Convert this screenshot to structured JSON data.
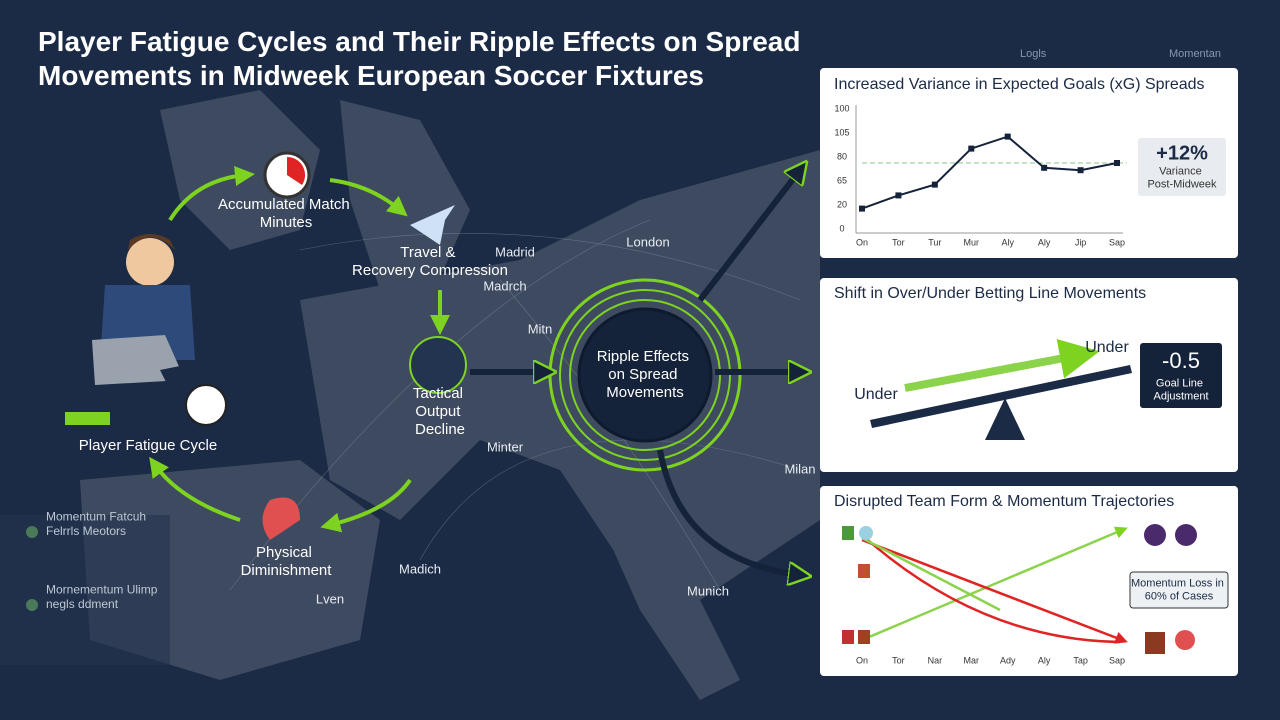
{
  "title": "Player Fatigue Cycles and Their Ripple Effects on Spread Movements in Midweek European Soccer Fixtures",
  "cycle": {
    "nodes": [
      "Accumulated Match Minutes",
      "Travel & Recovery Compression",
      "Tactical Output Decline",
      "Physical Diminishment"
    ],
    "player_label": "Player Fatigue Cycle",
    "center": "Ripple Effects on Spread Movements"
  },
  "map_labels": [
    "London",
    "Madrid",
    "Madrch",
    "Mitn",
    "Minter",
    "Milan",
    "Madich",
    "Lven",
    "Munich"
  ],
  "side_notes": [
    "Momentum Fatcuh Felrrls Meotors",
    "Mornementum Ulimp negls ddment"
  ],
  "corner_labels": [
    "Logls",
    "Momentan"
  ],
  "panels": [
    {
      "title": "Increased Variance in Expected Goals (xG) Spreads",
      "y_labels": [
        "100",
        "105",
        "80",
        "65",
        "20",
        "0"
      ],
      "x_labels": [
        "On",
        "Tor",
        "Tur",
        "Mur",
        "Aly",
        "Aly",
        "Jip",
        "Sap"
      ],
      "values": [
        17,
        28,
        37,
        67,
        77,
        51,
        49,
        55
      ],
      "reference": 55,
      "ylim": [
        0,
        100
      ],
      "callout": {
        "value": "+12%",
        "text": "Variance Post-Midweek"
      }
    },
    {
      "title": "Shift in Over/Under Betting Line Movements",
      "left_label": "Under",
      "right_label": "Under",
      "callout": {
        "value": -0.5,
        "text": "Goal Line Adjustment"
      }
    },
    {
      "title": "Disrupted Team Form & Momentum Trajectories",
      "x_labels": [
        "On",
        "Tor",
        "Nar",
        "Mar",
        "Ady",
        "Aly",
        "Tap",
        "Sap"
      ],
      "callout": "Momentum Loss in 60% of Cases"
    }
  ]
}
